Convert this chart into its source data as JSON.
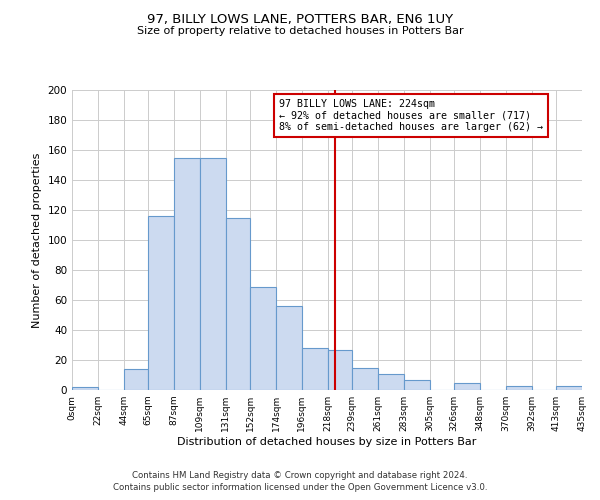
{
  "title": "97, BILLY LOWS LANE, POTTERS BAR, EN6 1UY",
  "subtitle": "Size of property relative to detached houses in Potters Bar",
  "xlabel": "Distribution of detached houses by size in Potters Bar",
  "ylabel": "Number of detached properties",
  "footer_line1": "Contains HM Land Registry data © Crown copyright and database right 2024.",
  "footer_line2": "Contains public sector information licensed under the Open Government Licence v3.0.",
  "bin_edges": [
    0,
    22,
    44,
    65,
    87,
    109,
    131,
    152,
    174,
    196,
    218,
    239,
    261,
    283,
    305,
    326,
    348,
    370,
    392,
    413,
    435
  ],
  "bin_labels": [
    "0sqm",
    "22sqm",
    "44sqm",
    "65sqm",
    "87sqm",
    "109sqm",
    "131sqm",
    "152sqm",
    "174sqm",
    "196sqm",
    "218sqm",
    "239sqm",
    "261sqm",
    "283sqm",
    "305sqm",
    "326sqm",
    "348sqm",
    "370sqm",
    "392sqm",
    "413sqm",
    "435sqm"
  ],
  "counts": [
    2,
    0,
    14,
    116,
    155,
    155,
    115,
    69,
    56,
    28,
    27,
    15,
    11,
    7,
    0,
    5,
    0,
    3,
    0,
    3
  ],
  "bar_facecolor": "#ccdaf0",
  "bar_edgecolor": "#6699cc",
  "property_size": 224,
  "vline_color": "#cc0000",
  "annotation_title": "97 BILLY LOWS LANE: 224sqm",
  "annotation_line1": "← 92% of detached houses are smaller (717)",
  "annotation_line2": "8% of semi-detached houses are larger (62) →",
  "annotation_box_edgecolor": "#cc0000",
  "ylim": [
    0,
    200
  ],
  "yticks": [
    0,
    20,
    40,
    60,
    80,
    100,
    120,
    140,
    160,
    180,
    200
  ],
  "background_color": "#ffffff",
  "grid_color": "#cccccc"
}
